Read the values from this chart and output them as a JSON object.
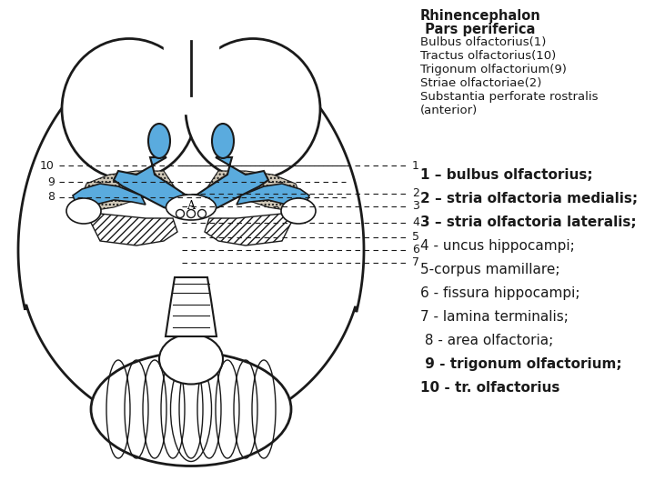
{
  "bg_color": "#ffffff",
  "blue": "#5aabde",
  "black": "#1a1a1a",
  "dot_gray": "#b0a090",
  "title_lines": [
    {
      "text": "Rhinencephalon",
      "bold": true,
      "size": 10.5
    },
    {
      "text": " Pars periferica",
      "bold": true,
      "size": 10.5
    },
    {
      "text": "Bulbus olfactorius(1)",
      "bold": false,
      "size": 9.5
    },
    {
      "text": "Tractus olfactorius(10)",
      "bold": false,
      "size": 9.5
    },
    {
      "text": "Trigonum olfactorium(9)",
      "bold": false,
      "size": 9.5
    },
    {
      "text": "Striae olfactoriae(2)",
      "bold": false,
      "size": 9.5
    },
    {
      "text": "Substantia perforate rostralis",
      "bold": false,
      "size": 9.5
    },
    {
      "text": "(anterior)",
      "bold": false,
      "size": 9.5
    }
  ],
  "legend_lines": [
    {
      "text": "1 – bulbus olfactorius;",
      "bold": true,
      "size": 11
    },
    {
      "text": "2 – stria olfactoria medialis;",
      "bold": true,
      "size": 11
    },
    {
      "text": "3 – stria olfactoria lateralis;",
      "bold": true,
      "size": 11
    },
    {
      "text": "4 - uncus hippocampi;",
      "bold": false,
      "size": 11
    },
    {
      "text": "5-corpus mamillare;",
      "bold": false,
      "size": 11
    },
    {
      "text": "6 - fissura hippocampi;",
      "bold": false,
      "size": 11
    },
    {
      "text": "7 - lamina terminalis;",
      "bold": false,
      "size": 11
    },
    {
      "text": " 8 - area olfactoria;",
      "bold": false,
      "size": 11
    },
    {
      "text": " 9 - trigonum olfactorium;",
      "bold": true,
      "size": 11
    },
    {
      "text": "10 - tr. olfactorius",
      "bold": true,
      "size": 11
    }
  ]
}
